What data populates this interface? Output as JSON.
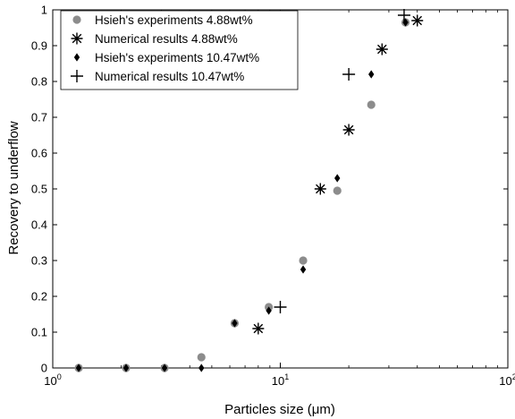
{
  "chart_data": {
    "type": "scatter",
    "xlabel": "Particles size (μm)",
    "ylabel": "Recovery to underflow",
    "xscale": "log",
    "xlim": [
      1,
      100
    ],
    "ylim": [
      0,
      1
    ],
    "x_ticks": [
      {
        "value": 1,
        "base": "10",
        "exp": "0"
      },
      {
        "value": 10,
        "base": "10",
        "exp": "1"
      },
      {
        "value": 100,
        "base": "10",
        "exp": "2"
      }
    ],
    "y_ticks": [
      "0",
      "0.1",
      "0.2",
      "0.3",
      "0.4",
      "0.5",
      "0.6",
      "0.7",
      "0.8",
      "0.9",
      "1"
    ],
    "grid": false,
    "legend_position": "top-left",
    "series": [
      {
        "name": "Hsieh's experiments 4.88wt%",
        "marker": "circle",
        "color": "#8c8c8c",
        "x": [
          1.3,
          2.1,
          3.1,
          4.5,
          6.3,
          8.9,
          12.6,
          17.8,
          25.1,
          35.5
        ],
        "y": [
          0.0,
          0.0,
          0.0,
          0.03,
          0.125,
          0.17,
          0.3,
          0.495,
          0.735,
          0.965
        ]
      },
      {
        "name": "Numerical results 4.88wt%",
        "marker": "asterisk",
        "color": "#000000",
        "x": [
          8.0,
          15.0,
          20.0,
          28.0,
          40.0
        ],
        "y": [
          0.11,
          0.5,
          0.665,
          0.89,
          0.97
        ]
      },
      {
        "name": "Hsieh's experiments 10.47wt%",
        "marker": "diamond",
        "color": "#000000",
        "x": [
          1.3,
          2.1,
          3.1,
          4.5,
          6.3,
          8.9,
          12.6,
          17.8,
          25.1,
          35.5
        ],
        "y": [
          0.0,
          0.0,
          0.0,
          0.0,
          0.125,
          0.16,
          0.275,
          0.53,
          0.82,
          0.965
        ]
      },
      {
        "name": "Numerical results 10.47wt%",
        "marker": "plus",
        "color": "#000000",
        "x": [
          10.0,
          20.0,
          35.0
        ],
        "y": [
          0.17,
          0.82,
          0.985
        ]
      }
    ]
  }
}
